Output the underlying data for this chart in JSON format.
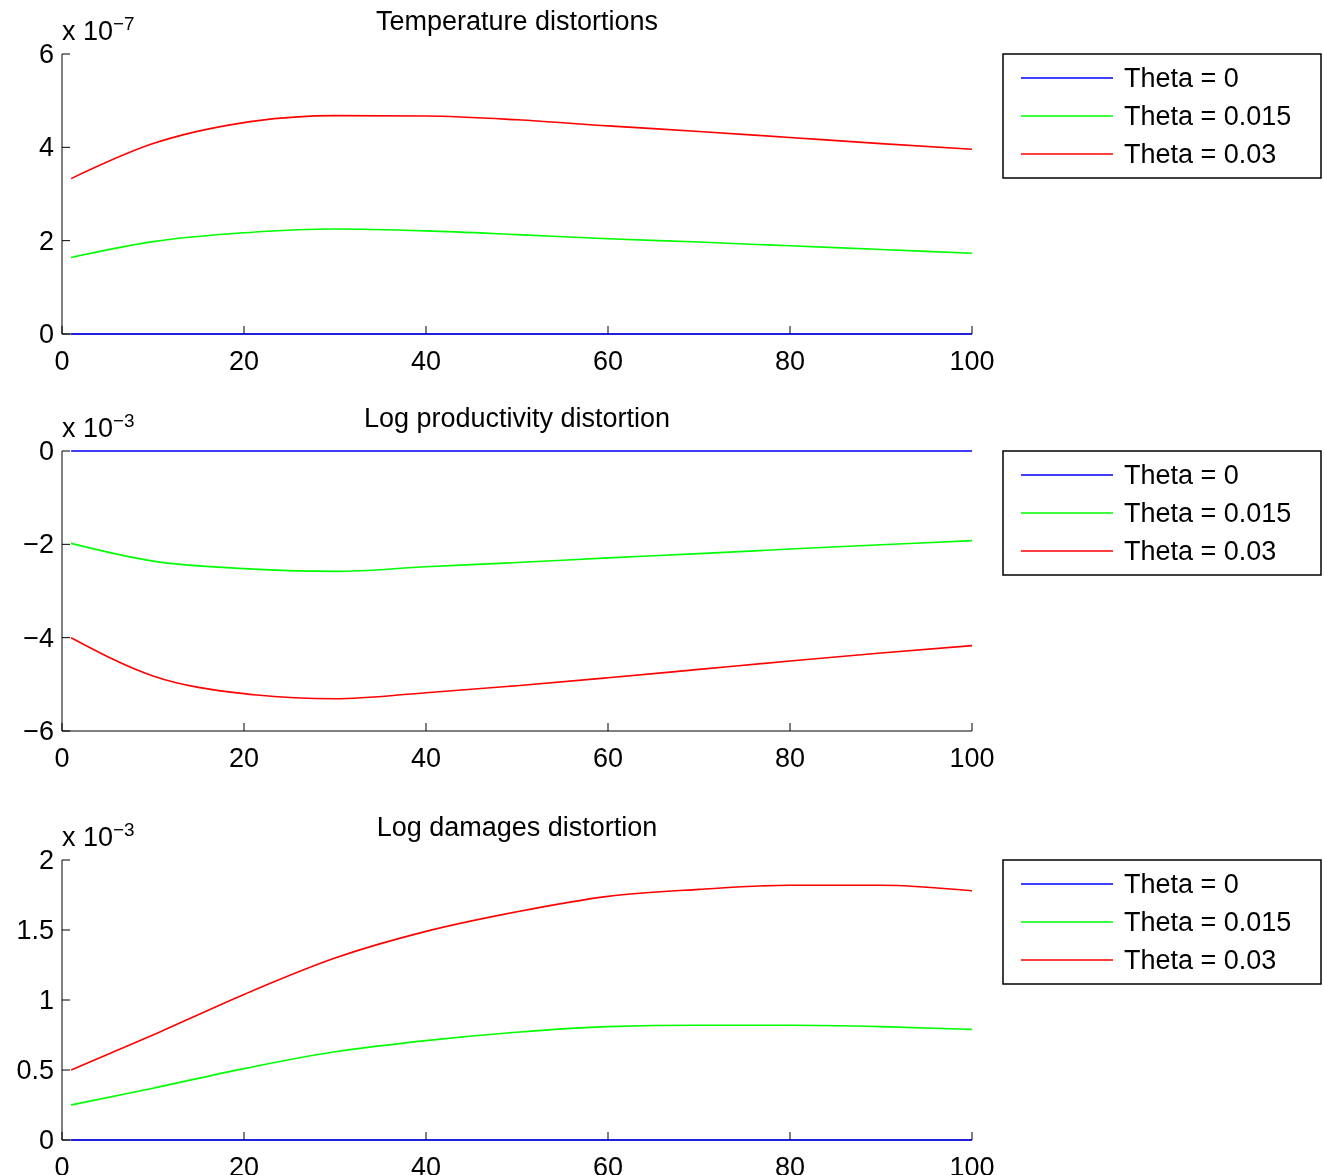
{
  "chart_data": [
    {
      "type": "line",
      "title": "Temperature distortions",
      "annotations": [
        "x 10$^{−7}$"
      ],
      "x": [
        1,
        10,
        20,
        30,
        40,
        50,
        60,
        70,
        80,
        90,
        100
      ],
      "xlim": [
        0,
        100
      ],
      "xticks": [
        0,
        20,
        40,
        60,
        80,
        100
      ],
      "ylim": [
        0,
        6
      ],
      "yticks": [
        0,
        2,
        4,
        6
      ],
      "legend": "right",
      "grid": false,
      "series": [
        {
          "name": "Theta = 0",
          "color": "#0000ff",
          "values": [
            0,
            0,
            0,
            0,
            0,
            0,
            0,
            0,
            0,
            0,
            0
          ]
        },
        {
          "name": "Theta = 0.015",
          "color": "#00ff00",
          "values": [
            1.64,
            1.98,
            2.17,
            2.25,
            2.21,
            2.13,
            2.04,
            1.97,
            1.89,
            1.81,
            1.73
          ]
        },
        {
          "name": "Theta = 0.03",
          "color": "#ff0000",
          "values": [
            3.33,
            4.08,
            4.53,
            4.68,
            4.67,
            4.59,
            4.46,
            4.34,
            4.21,
            4.08,
            3.96
          ]
        }
      ]
    },
    {
      "type": "line",
      "title": "Log productivity distortion",
      "annotations": [
        "x 10$^{−3}$"
      ],
      "x": [
        1,
        10,
        20,
        30,
        40,
        50,
        60,
        70,
        80,
        90,
        100
      ],
      "xlim": [
        0,
        100
      ],
      "xticks": [
        0,
        20,
        40,
        60,
        80,
        100
      ],
      "ylim": [
        -6,
        0
      ],
      "yticks": [
        {
          "value": -6,
          "label": "−6"
        },
        {
          "value": -4,
          "label": "−4"
        },
        {
          "value": -2,
          "label": "−2"
        },
        0
      ],
      "legend": "right",
      "grid": false,
      "series": [
        {
          "name": "Theta = 0",
          "color": "#0000ff",
          "values": [
            0,
            0,
            0,
            0,
            0,
            0,
            0,
            0,
            0,
            0,
            0
          ]
        },
        {
          "name": "Theta = 0.015",
          "color": "#00ff00",
          "values": [
            -1.98,
            -2.36,
            -2.52,
            -2.58,
            -2.48,
            -2.39,
            -2.29,
            -2.2,
            -2.1,
            -2.01,
            -1.92
          ]
        },
        {
          "name": "Theta = 0.03",
          "color": "#ff0000",
          "values": [
            -4.0,
            -4.82,
            -5.2,
            -5.31,
            -5.18,
            -5.03,
            -4.86,
            -4.68,
            -4.5,
            -4.33,
            -4.17
          ]
        }
      ]
    },
    {
      "type": "line",
      "title": "Log damages distortion",
      "annotations": [
        "x 10$^{−3}$"
      ],
      "x": [
        1,
        10,
        20,
        30,
        40,
        50,
        60,
        70,
        80,
        90,
        100
      ],
      "xlim": [
        0,
        100
      ],
      "xticks": [
        0,
        20,
        40,
        60,
        80,
        100
      ],
      "ylim": [
        0,
        2
      ],
      "yticks": [
        0,
        0.5,
        1,
        1.5,
        2
      ],
      "legend": "right",
      "grid": false,
      "series": [
        {
          "name": "Theta = 0",
          "color": "#0000ff",
          "values": [
            0,
            0,
            0,
            0,
            0,
            0,
            0,
            0,
            0,
            0,
            0
          ]
        },
        {
          "name": "Theta = 0.015",
          "color": "#00ff00",
          "values": [
            0.25,
            0.37,
            0.51,
            0.63,
            0.71,
            0.77,
            0.81,
            0.82,
            0.82,
            0.81,
            0.79
          ]
        },
        {
          "name": "Theta = 0.03",
          "color": "#ff0000",
          "values": [
            0.5,
            0.75,
            1.04,
            1.3,
            1.49,
            1.63,
            1.74,
            1.79,
            1.82,
            1.82,
            1.78
          ]
        }
      ]
    }
  ]
}
